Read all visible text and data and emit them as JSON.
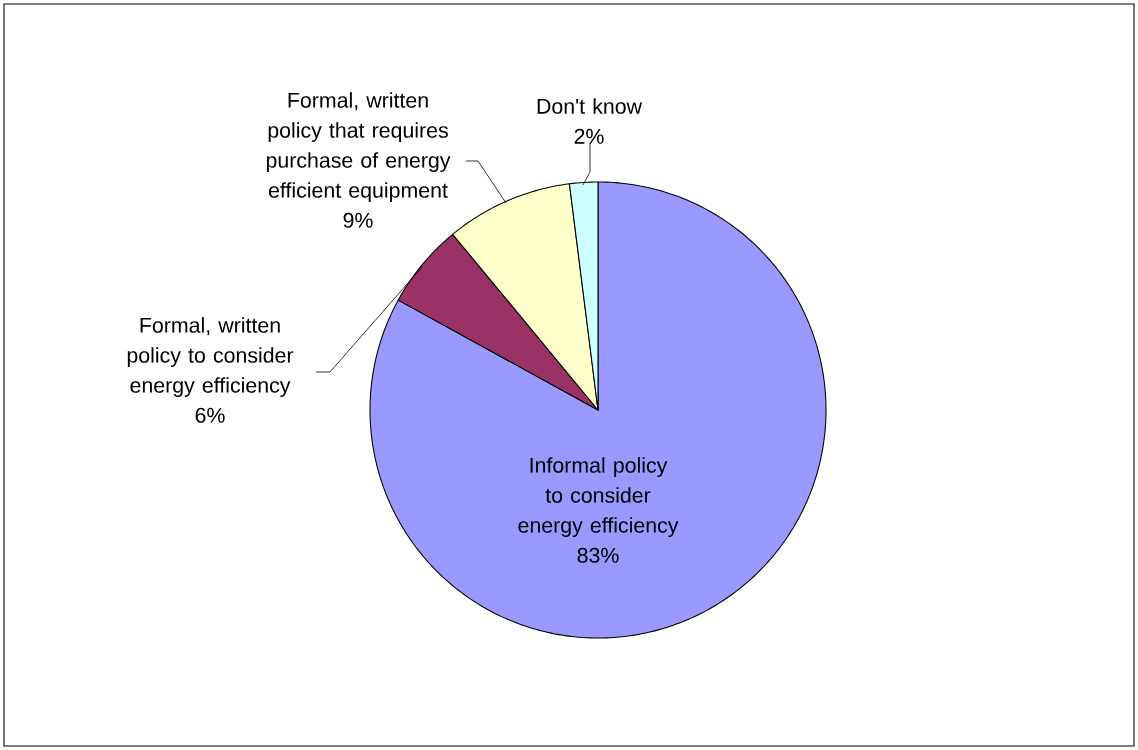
{
  "chart_data": {
    "type": "pie",
    "categories": [
      "Informal policy to consider energy efficiency",
      "Formal, written policy to consider energy efficiency",
      "Formal, written policy that requires purchase of energy efficient equipment",
      "Don't know"
    ],
    "values": [
      83,
      6,
      9,
      2
    ],
    "colors": [
      "#9999ff",
      "#993366",
      "#ffffcc",
      "#ccffff"
    ],
    "value_labels": [
      "83%",
      "6%",
      "9%",
      "2%"
    ]
  }
}
